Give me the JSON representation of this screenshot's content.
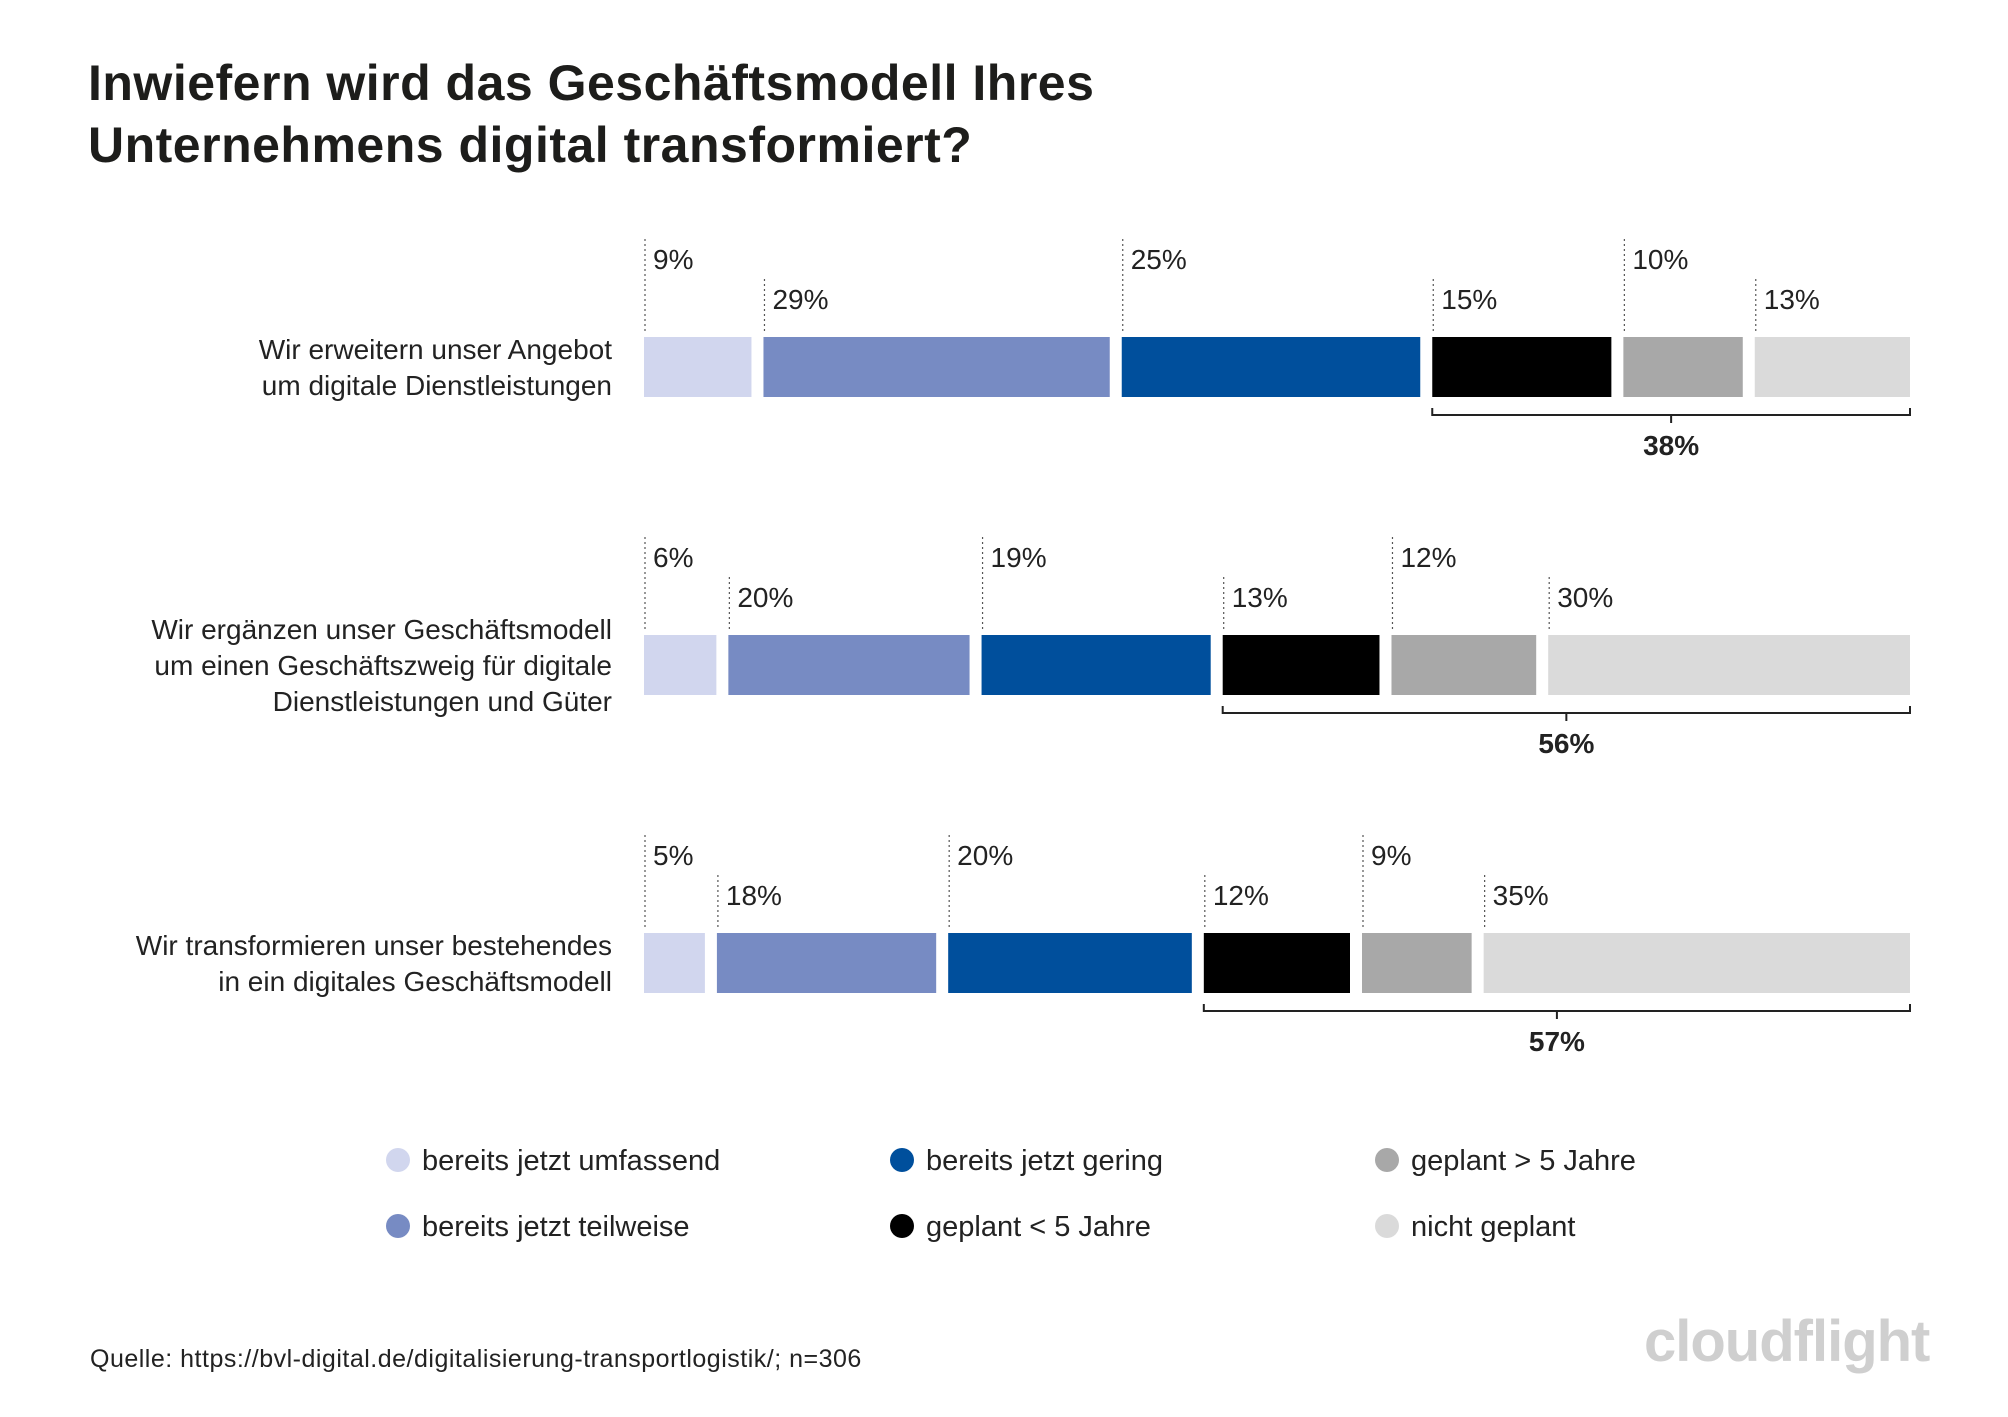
{
  "chart_data": {
    "type": "bar",
    "stacked": true,
    "orientation": "horizontal",
    "title": "Inwiefern wird das Geschäftsmodell Ihres Unternehmens digital transformiert?",
    "title_lines": [
      "Inwiefern wird das Geschäftsmodell Ihres",
      "Unternehmens digital transformiert?"
    ],
    "xlabel": "",
    "ylabel": "",
    "unit": "%",
    "categories": [
      {
        "name": "Wir erweitern unser Angebot um digitale Dienstleistungen",
        "lines": [
          "Wir erweitern unser Angebot",
          "um digitale Dienstleistungen"
        ]
      },
      {
        "name": "Wir ergänzen unser Geschäftsmodell um einen Geschäftszweig für digitale Dienstleistungen und Güter",
        "lines": [
          "Wir ergänzen unser Geschäftsmodell",
          "um einen Geschäftszweig für digitale",
          "Dienstleistungen und Güter"
        ]
      },
      {
        "name": "Wir transformieren unser bestehendes in ein digitales Geschäftsmodell",
        "lines": [
          "Wir transformieren unser bestehendes",
          "in ein digitales Geschäftsmodell"
        ]
      }
    ],
    "series": [
      {
        "name": "bereits jetzt umfassend",
        "color": "#d1d6ee",
        "values": [
          9,
          6,
          5
        ]
      },
      {
        "name": "bereits jetzt teilweise",
        "color": "#778bc3",
        "values": [
          29,
          20,
          18
        ]
      },
      {
        "name": "bereits jetzt gering",
        "color": "#004f9c",
        "values": [
          25,
          19,
          20
        ]
      },
      {
        "name": "geplant < 5 Jahre",
        "color": "#000000",
        "values": [
          15,
          13,
          12
        ]
      },
      {
        "name": "geplant > 5 Jahre",
        "color": "#a8a8a8",
        "values": [
          10,
          12,
          9
        ]
      },
      {
        "name": "nicht geplant",
        "color": "#dadada",
        "values": [
          13,
          30,
          35
        ]
      }
    ],
    "bracket_totals": [
      "38%",
      "56%",
      "57%"
    ],
    "legend_position": "bottom",
    "grid": false
  },
  "source_text": "Quelle: https://bvl-digital.de/digitalisierung-transportlogistik/; n=306",
  "logo_text": "cloudflight"
}
